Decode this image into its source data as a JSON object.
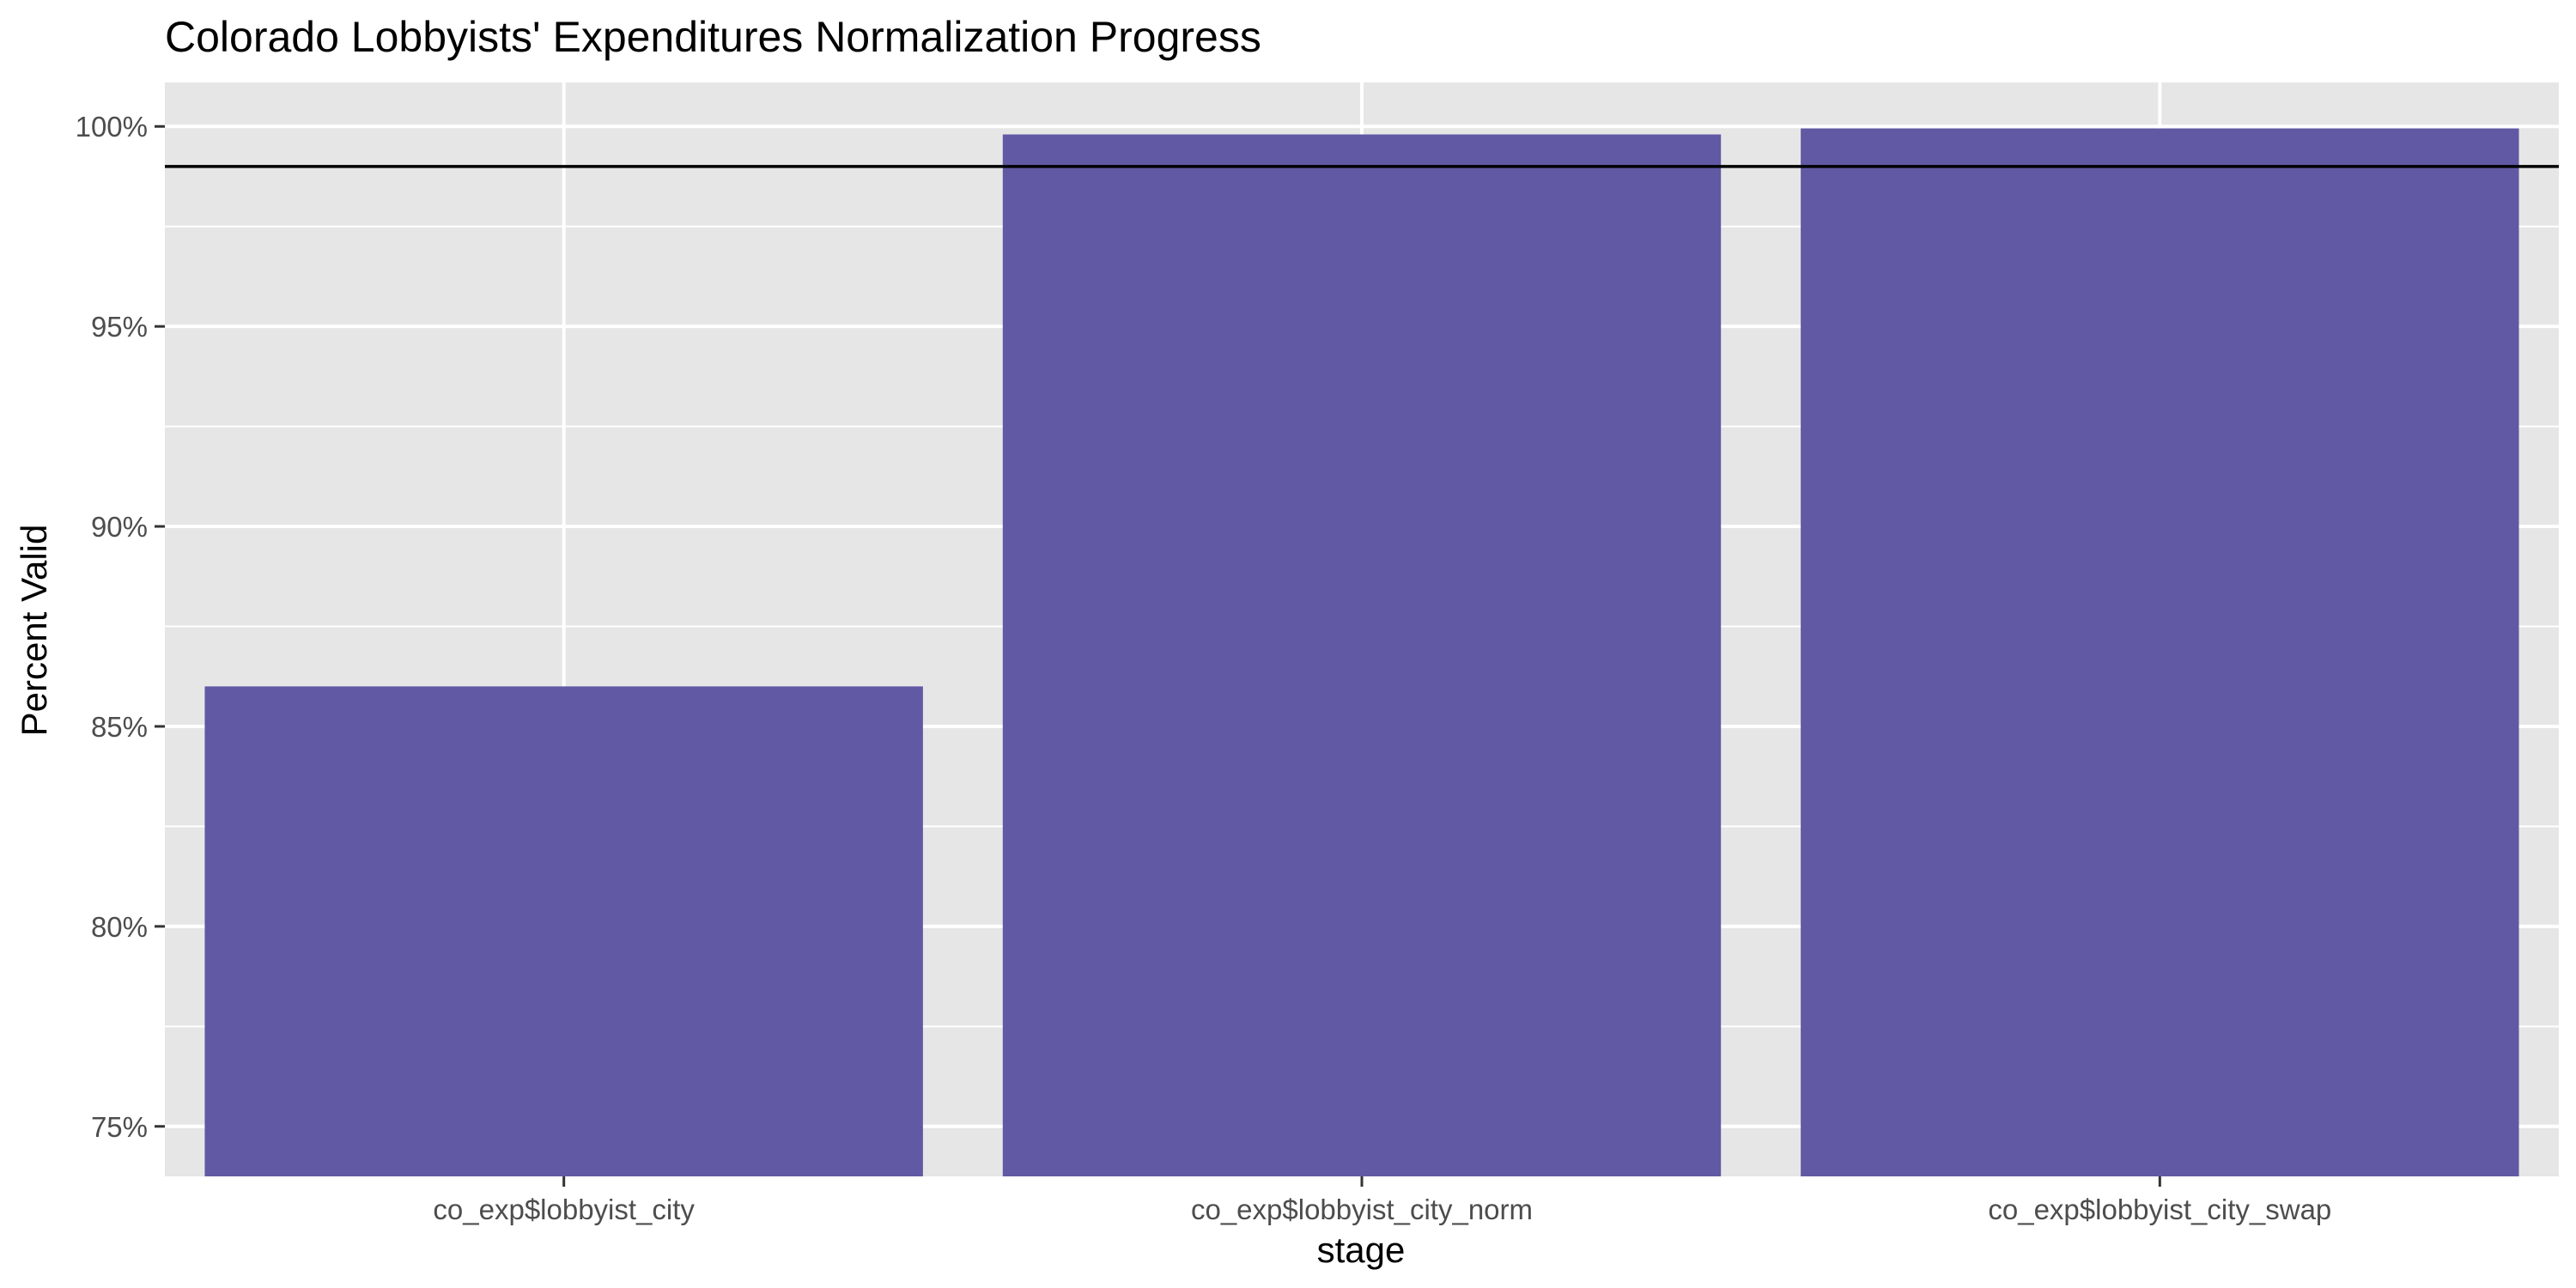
{
  "chart_data": {
    "type": "bar",
    "title": "Colorado Lobbyists' Expenditures Normalization Progress",
    "xlabel": "stage",
    "ylabel": "Percent Valid",
    "categories": [
      "co_exp$lobbyist_city",
      "co_exp$lobbyist_city_norm",
      "co_exp$lobbyist_city_swap"
    ],
    "values": [
      86.0,
      99.8,
      99.95
    ],
    "ylim": [
      73.75,
      101.1
    ],
    "yticks": [
      75,
      80,
      85,
      90,
      95,
      100
    ],
    "ytick_labels": [
      "75%",
      "80%",
      "85%",
      "90%",
      "95%",
      "100%"
    ],
    "reference_line": 99,
    "grid": true,
    "legend": "none",
    "colors": {
      "bar": "#6159a4",
      "panel": "#e6e6e6",
      "grid": "#ffffff",
      "reference_line": "#000000",
      "tick_text": "#4d4d4d"
    }
  }
}
